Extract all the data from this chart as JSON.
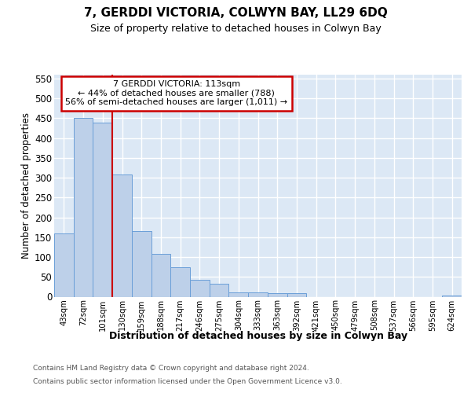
{
  "title": "7, GERDDI VICTORIA, COLWYN BAY, LL29 6DQ",
  "subtitle": "Size of property relative to detached houses in Colwyn Bay",
  "xlabel": "Distribution of detached houses by size in Colwyn Bay",
  "ylabel": "Number of detached properties",
  "footer_line1": "Contains HM Land Registry data © Crown copyright and database right 2024.",
  "footer_line2": "Contains public sector information licensed under the Open Government Licence v3.0.",
  "categories": [
    "43sqm",
    "72sqm",
    "101sqm",
    "130sqm",
    "159sqm",
    "188sqm",
    "217sqm",
    "246sqm",
    "275sqm",
    "304sqm",
    "333sqm",
    "363sqm",
    "392sqm",
    "421sqm",
    "450sqm",
    "479sqm",
    "508sqm",
    "537sqm",
    "566sqm",
    "595sqm",
    "624sqm"
  ],
  "values": [
    160,
    450,
    440,
    308,
    165,
    108,
    75,
    43,
    33,
    10,
    10,
    8,
    8,
    0,
    0,
    0,
    0,
    0,
    0,
    0,
    3
  ],
  "bar_color": "#bdd0e9",
  "bar_edge_color": "#6a9fd8",
  "background_color": "#dce8f5",
  "grid_color": "#ffffff",
  "ylim": [
    0,
    560
  ],
  "yticks": [
    0,
    50,
    100,
    150,
    200,
    250,
    300,
    350,
    400,
    450,
    500,
    550
  ],
  "red_line_x": 2.5,
  "red_line_color": "#cc0000",
  "annotation_text": "7 GERDDI VICTORIA: 113sqm\n← 44% of detached houses are smaller (788)\n56% of semi-detached houses are larger (1,011) →",
  "annotation_box_color": "#ffffff",
  "annotation_box_edge": "#cc0000"
}
